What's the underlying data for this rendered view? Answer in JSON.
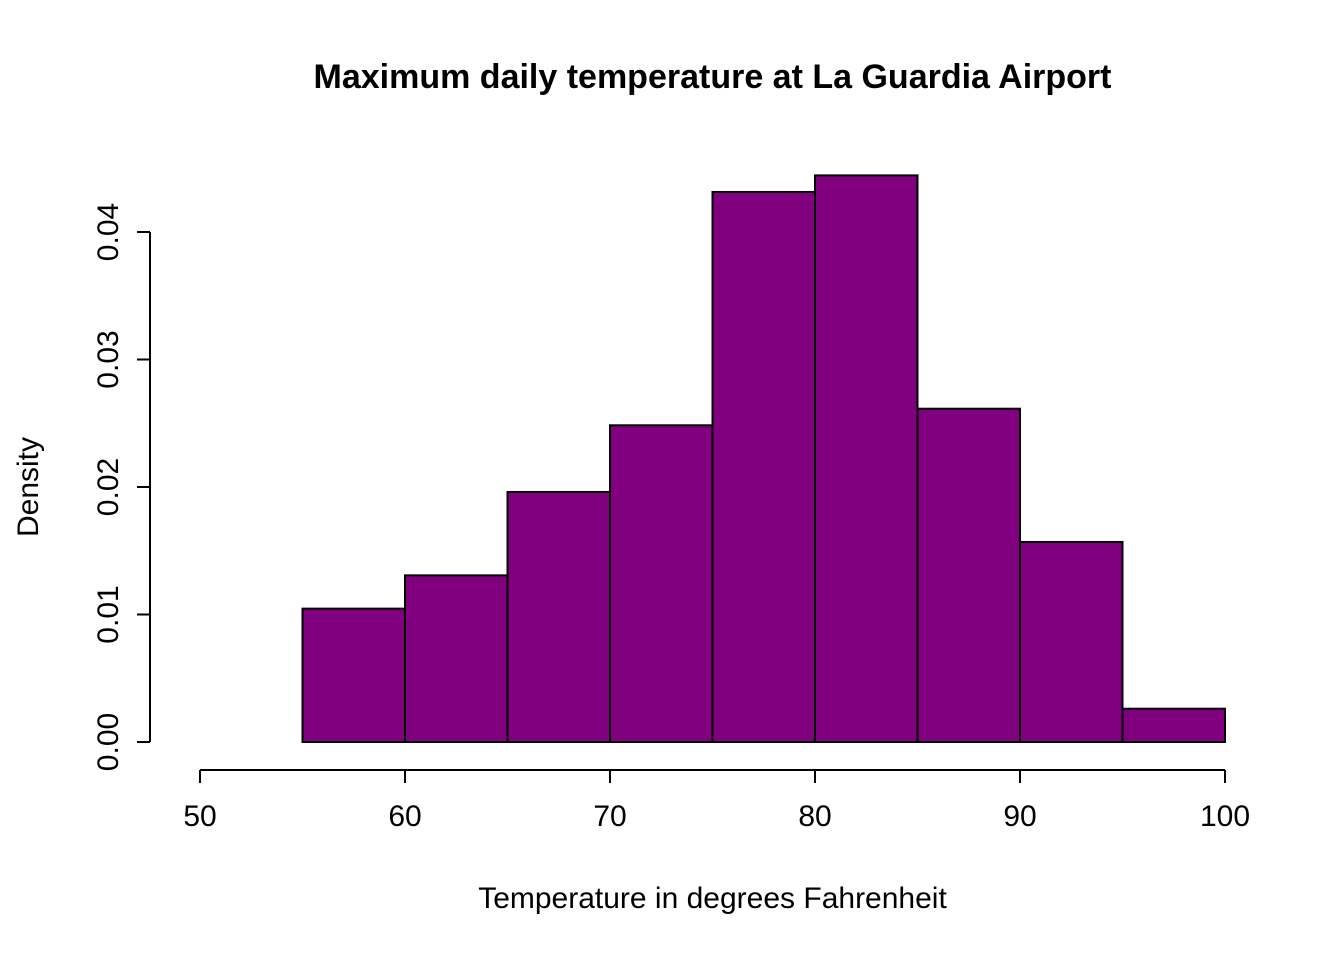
{
  "chart_data": {
    "type": "bar",
    "subtype": "histogram",
    "title": "Maximum daily temperature at La Guardia Airport",
    "xlabel": "Temperature in degrees Fahrenheit",
    "ylabel": "Density",
    "bin_edges": [
      55,
      60,
      65,
      70,
      75,
      80,
      85,
      90,
      95,
      100
    ],
    "densities": [
      0.01046,
      0.01307,
      0.01961,
      0.02484,
      0.04314,
      0.04444,
      0.02614,
      0.01569,
      0.00261
    ],
    "xlim": [
      50,
      100
    ],
    "ylim": [
      0,
      0.0445
    ],
    "x_ticks": [
      {
        "value": 50,
        "label": "50"
      },
      {
        "value": 60,
        "label": "60"
      },
      {
        "value": 70,
        "label": "70"
      },
      {
        "value": 80,
        "label": "80"
      },
      {
        "value": 90,
        "label": "90"
      },
      {
        "value": 100,
        "label": "100"
      }
    ],
    "y_ticks": [
      {
        "value": 0.0,
        "label": "0.00"
      },
      {
        "value": 0.01,
        "label": "0.01"
      },
      {
        "value": 0.02,
        "label": "0.02"
      },
      {
        "value": 0.03,
        "label": "0.03"
      },
      {
        "value": 0.04,
        "label": "0.04"
      }
    ],
    "grid": false,
    "legend": "none",
    "colors": {
      "bar_fill": "#800080",
      "bar_stroke": "#000000",
      "axis": "#000000",
      "background": "#ffffff"
    }
  }
}
